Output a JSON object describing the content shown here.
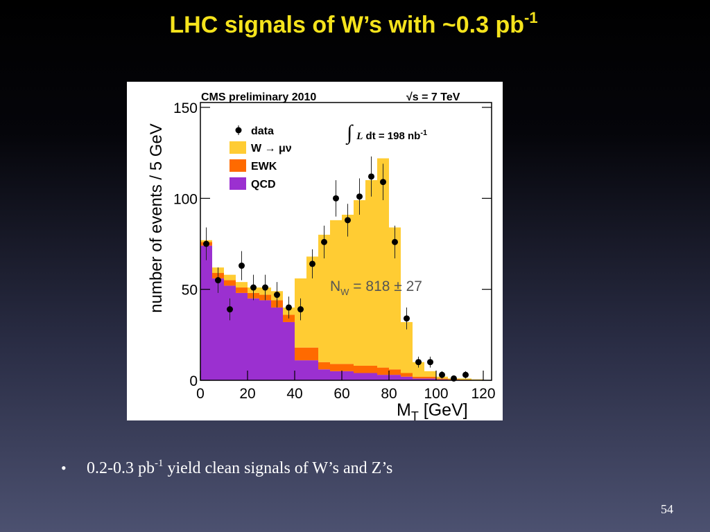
{
  "slide": {
    "title": "LHC signals of W’s with ~0.3 pb",
    "title_sup": "-1",
    "bullet_marker": "•",
    "bullet_pre": "0.2-0.3 pb",
    "bullet_sup": "-1",
    "bullet_post": " yield clean signals of W’s and Z’s",
    "page_number": "54"
  },
  "chart_data": {
    "type": "histogram",
    "annotations": {
      "experiment": "CMS preliminary 2010",
      "energy": "√s = 7 TeV",
      "lumi_integral": "∫",
      "lumi_l": "L",
      "lumi_text": " dt = 198 nb",
      "lumi_sup": "-1",
      "yield_n": "N",
      "yield_sub": "W",
      "yield_text": " = 818 ± 27"
    },
    "y_label": "number of events / 5 GeV",
    "x_label_main": "M",
    "x_label_sub": "T",
    "x_label_unit": " [GeV]",
    "bins": [
      0,
      5,
      10,
      15,
      20,
      25,
      30,
      35,
      40,
      45,
      50,
      55,
      60,
      65,
      70,
      75,
      80,
      85,
      90,
      95,
      100,
      105,
      110,
      115,
      120
    ],
    "series": [
      {
        "name": "QCD",
        "color": "#9b30d0",
        "values": [
          74,
          56,
          52,
          48,
          45,
          44,
          40,
          32,
          11,
          11,
          6,
          5,
          5,
          4,
          4,
          3,
          3,
          2,
          1,
          1,
          0.5,
          0.3,
          0.2,
          0.1
        ]
      },
      {
        "name": "EWK",
        "color": "#ff6a00",
        "values": [
          2,
          3,
          3,
          3,
          3,
          3,
          4,
          4,
          7,
          7,
          4,
          4,
          4,
          4,
          4,
          4,
          3,
          2,
          1,
          1,
          0.5,
          0.3,
          0.2,
          0.1
        ]
      },
      {
        "name": "W → μν",
        "color": "#ffcc33",
        "values": [
          1,
          3,
          3,
          3,
          3,
          4,
          5,
          4,
          38,
          50,
          70,
          79,
          82,
          91,
          102,
          115,
          78,
          28,
          8,
          3,
          1,
          0.4,
          0.6,
          0.3
        ]
      }
    ],
    "data_points": {
      "name": "data",
      "color": "#000000",
      "x": [
        2.5,
        7.5,
        12.5,
        17.5,
        22.5,
        27.5,
        32.5,
        37.5,
        42.5,
        47.5,
        52.5,
        57.5,
        62.5,
        67.5,
        72.5,
        77.5,
        82.5,
        87.5,
        92.5,
        97.5,
        102.5,
        107.5,
        112.5
      ],
      "values": [
        75,
        55,
        39,
        63,
        51,
        51,
        47,
        40,
        39,
        64,
        76,
        100,
        88,
        101,
        112,
        109,
        76,
        34,
        10,
        10,
        3,
        1,
        3
      ],
      "errors": [
        9,
        7,
        6,
        8,
        7,
        7,
        7,
        6,
        6,
        8,
        9,
        10,
        9,
        10,
        11,
        10,
        9,
        6,
        3,
        3,
        2,
        1,
        2
      ]
    },
    "xlim": [
      0,
      120
    ],
    "xticks": [
      0,
      20,
      40,
      60,
      80,
      100,
      120
    ],
    "ylim": [
      0,
      150
    ],
    "yticks": [
      0,
      50,
      100,
      150
    ]
  }
}
